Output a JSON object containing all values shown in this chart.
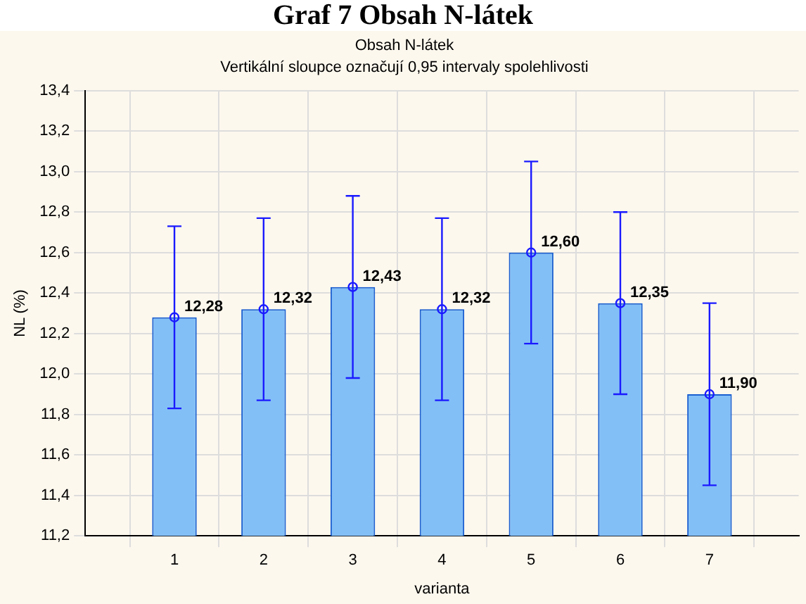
{
  "chart_data": {
    "type": "bar",
    "title": "Obsah N-látek",
    "subtitle": "Vertikální sloupce označují 0,95 intervaly spolehlivosti",
    "annotations": [
      "Graf 7 Obsah N-látek"
    ],
    "xlabel": "varianta",
    "ylabel": "NL (%)",
    "categories": [
      "1",
      "2",
      "3",
      "4",
      "5",
      "6",
      "7"
    ],
    "series": [
      {
        "color": "#82bff7",
        "values": [
          12.28,
          12.32,
          12.43,
          12.32,
          12.6,
          12.35,
          11.9
        ],
        "value_labels": [
          "12,28",
          "12,32",
          "12,43",
          "12,32",
          "12,60",
          "12,35",
          "11,90"
        ],
        "errors": [
          0.45,
          0.45,
          0.45,
          0.45,
          0.45,
          0.45,
          0.45
        ]
      },
      {
        "type": "scatter",
        "color": "#1a1aff",
        "marker": "circle",
        "x": [
          "1",
          "2",
          "3",
          "4",
          "5",
          "6",
          "7"
        ],
        "values": [
          12.28,
          12.32,
          12.43,
          12.32,
          12.6,
          12.35,
          11.9
        ]
      }
    ],
    "ylim": [
      11.2,
      13.4
    ],
    "yticks": [
      {
        "value": 11.2,
        "label": "11,2"
      },
      {
        "value": 11.4,
        "label": "11,4"
      },
      {
        "value": 11.6,
        "label": "11,6"
      },
      {
        "value": 11.8,
        "label": "11,8"
      },
      {
        "value": 12.0,
        "label": "12,0"
      },
      {
        "value": 12.2,
        "label": "12,2"
      },
      {
        "value": 12.4,
        "label": "12,4"
      },
      {
        "value": 12.6,
        "label": "12,6"
      },
      {
        "value": 12.8,
        "label": "12,8"
      },
      {
        "value": 13.0,
        "label": "13,0"
      },
      {
        "value": 13.2,
        "label": "13,2"
      },
      {
        "value": 13.4,
        "label": "13,4"
      }
    ],
    "grid": true
  }
}
